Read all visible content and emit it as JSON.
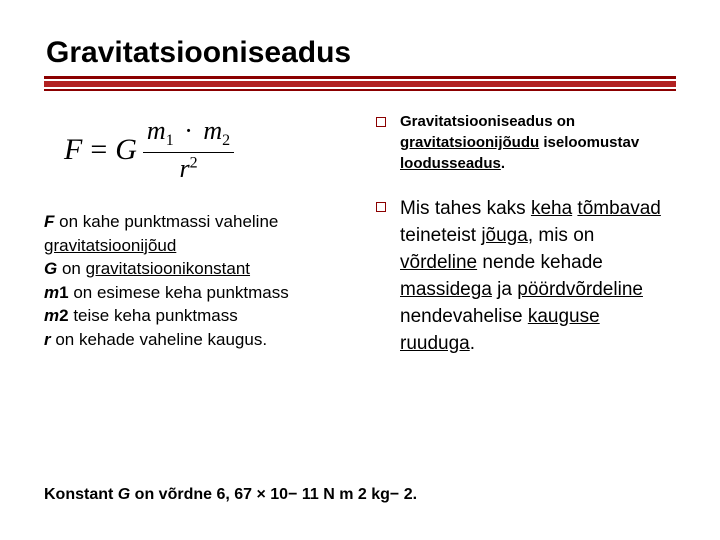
{
  "title": "Gravitatsiooniseadus",
  "colors": {
    "background": "#ffffff",
    "text": "#000000",
    "rule_dark": "#8b0000",
    "rule_mid": "#b22222"
  },
  "formula": {
    "lhs": "F",
    "eq": "=",
    "G": "G",
    "m1": "m",
    "sub1": "1",
    "dot": "·",
    "m2": "m",
    "sub2": "2",
    "r": "r",
    "sup2": "2"
  },
  "definitions": {
    "F_term": "F",
    "F_text1": " on kahe punktmassi vaheline ",
    "F_link": "gravitatsioonijõud",
    "G_term": "G",
    "G_text1": " on ",
    "G_link": "gravitatsioonikonstant",
    "m1_term": "m",
    "m1_num": "1",
    "m1_text": " on esimese keha punktmass",
    "m2_term": "m",
    "m2_num": "2",
    "m2_text": " teise keha punktmass",
    "r_term": "r",
    "r_text": " on kehade vaheline kaugus."
  },
  "bullets": {
    "b1": {
      "lead": "Gravitatsiooniseadus on ",
      "u1": "gravitatsioonijõudu",
      "mid": " iseloomustav ",
      "u2": "loodusseadus",
      "end": "."
    },
    "b2": {
      "t1": "Mis tahes kaks ",
      "u1": "keha",
      "t2": " ",
      "u2": "tõmbavad",
      "t3": " teineteist ",
      "u3": "jõuga",
      "t4": ", mis on ",
      "u4": "võrdeline",
      "t5": " nende kehade ",
      "u5": "massidega",
      "t6": " ja ",
      "u6": "pöördvõrdeline",
      "t7": " nendevahelise ",
      "u7": "kauguse",
      "t8": " ",
      "u8": "ruuduga",
      "t9": "."
    }
  },
  "footer": {
    "pre": "Konstant ",
    "G": "G",
    "mid": " on võrdne 6, 67 × 10− 11 N m 2 kg− 2."
  }
}
